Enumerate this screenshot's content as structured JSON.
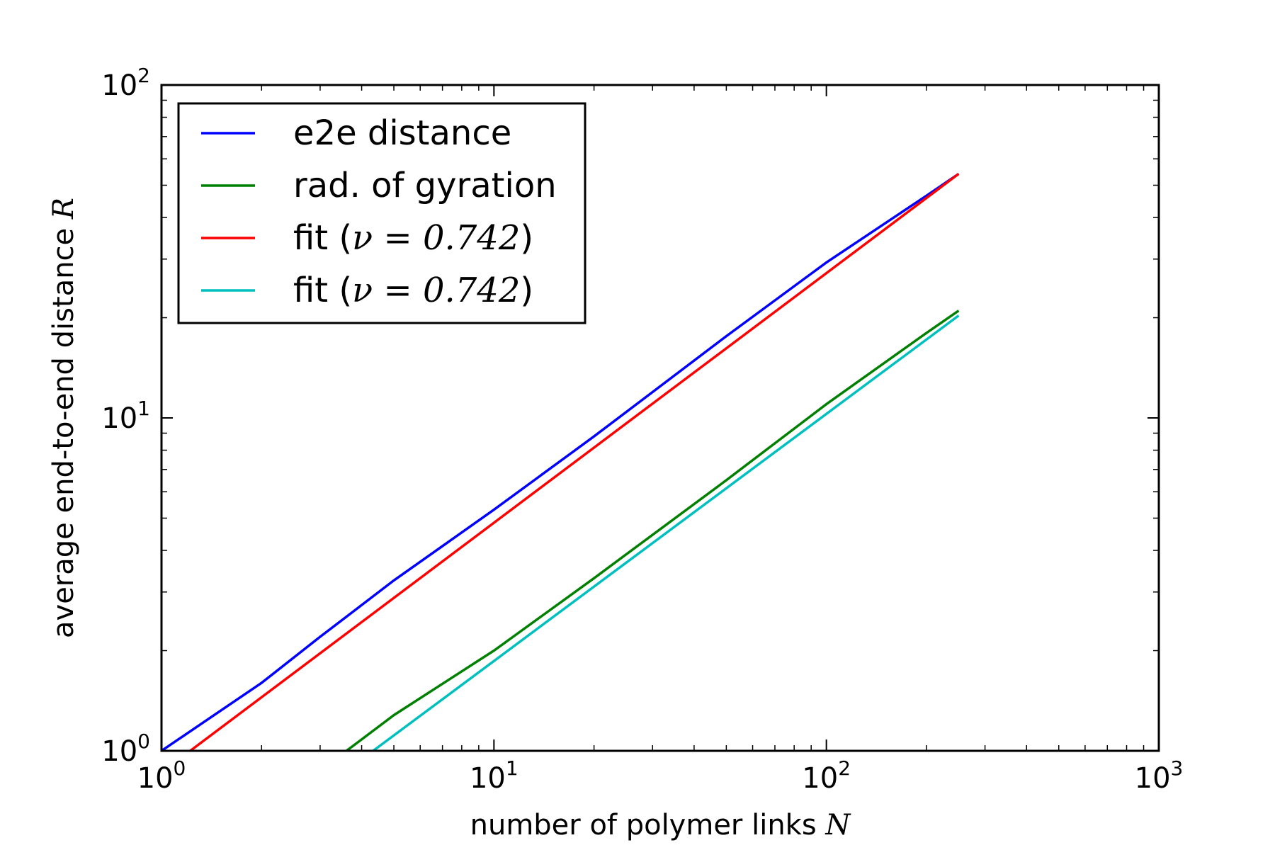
{
  "chart_data": {
    "type": "line",
    "xscale": "log",
    "yscale": "log",
    "xlim": [
      1,
      1000
    ],
    "ylim": [
      1,
      100
    ],
    "grid": false,
    "legend_position": "top-left",
    "xlabel": "number of polymer links",
    "xlabel_var": "N",
    "ylabel": "average end-to-end distance",
    "ylabel_var": "R",
    "x_ticks": [
      {
        "value": 1,
        "base": "10",
        "exp": "0"
      },
      {
        "value": 10,
        "base": "10",
        "exp": "1"
      },
      {
        "value": 100,
        "base": "10",
        "exp": "2"
      },
      {
        "value": 1000,
        "base": "10",
        "exp": "3"
      }
    ],
    "y_ticks": [
      {
        "value": 1,
        "base": "10",
        "exp": "0"
      },
      {
        "value": 10,
        "base": "10",
        "exp": "1"
      },
      {
        "value": 100,
        "base": "10",
        "exp": "2"
      }
    ],
    "series": [
      {
        "name": "e2e distance",
        "legend_prefix": "e2e distance",
        "legend_math": "",
        "legend_suffix": "",
        "color": "#0000ff",
        "x": [
          1,
          2,
          3,
          5,
          10,
          20,
          50,
          100,
          200,
          250
        ],
        "y": [
          1.0,
          1.6,
          2.2,
          3.25,
          5.3,
          8.8,
          17.6,
          29.3,
          46.5,
          54.1
        ]
      },
      {
        "name": "rad. of gyration",
        "legend_prefix": "rad. of gyration",
        "legend_math": "",
        "legend_suffix": "",
        "color": "#008000",
        "x": [
          3.6,
          5,
          10,
          20,
          50,
          100,
          200,
          250
        ],
        "y": [
          1.0,
          1.28,
          2.0,
          3.3,
          6.5,
          11.0,
          18.0,
          21.0
        ]
      },
      {
        "name": "fit (ν = 0.742)",
        "legend_prefix": "fit (",
        "legend_math": "ν = 0.742",
        "legend_suffix": ")",
        "color": "#ff0000",
        "x": [
          1.22,
          250
        ],
        "y": [
          1.0,
          54.1
        ]
      },
      {
        "name": "fit (ν = 0.742)",
        "legend_prefix": "fit (",
        "legend_math": "ν = 0.742",
        "legend_suffix": ")",
        "color": "#00bfbf",
        "x": [
          4.33,
          250
        ],
        "y": [
          1.0,
          20.3
        ]
      }
    ]
  }
}
